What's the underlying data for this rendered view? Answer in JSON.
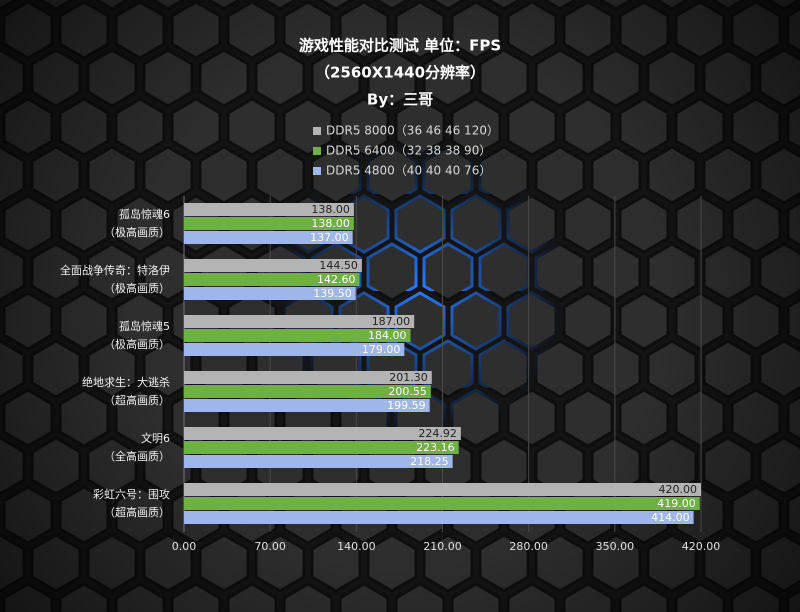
{
  "chart_data": {
    "type": "hbar",
    "title": [
      "游戏性能对比测试 单位：FPS",
      "（2560X1440分辨率）",
      "By：三哥"
    ],
    "categories": [
      [
        "孤岛惊魂6",
        "（极高画质）"
      ],
      [
        "全面战争传奇：特洛伊",
        "（极高画质）"
      ],
      [
        "孤岛惊魂5",
        "（极高画质）"
      ],
      [
        "绝地求生：大逃杀",
        "（超高画质）"
      ],
      [
        "文明6",
        "（全高画质）"
      ],
      [
        "彩虹六号：围攻",
        "（超高画质）"
      ]
    ],
    "series": [
      {
        "name": "DDR5 8000（36 46 46 120）",
        "color": "#b4b4b4",
        "values": [
          138,
          144.5,
          187,
          201.3,
          224.92,
          420
        ],
        "value_labels": [
          "138.00",
          "144.50",
          "187.00",
          "201.30",
          "224.92",
          "420.00"
        ]
      },
      {
        "name": "DDR5 6400（32 38 38 90）",
        "color": "#6fb043",
        "values": [
          138,
          142.6,
          184,
          200.55,
          223.16,
          419
        ],
        "value_labels": [
          "138.00",
          "142.60",
          "184.00",
          "200.55",
          "223.16",
          "419.00"
        ]
      },
      {
        "name": "DDR5 4800（40 40 40 76）",
        "color": "#9fb6e8",
        "values": [
          137,
          139.5,
          179,
          199.59,
          218.25,
          414
        ],
        "value_labels": [
          "137.00",
          "139.50",
          "179.00",
          "199.59",
          "218.25",
          "414.00"
        ]
      }
    ],
    "xlim": [
      0,
      420
    ],
    "xticks": [
      {
        "value": 0,
        "label": "0.00"
      },
      {
        "value": 70,
        "label": "70.00"
      },
      {
        "value": 140,
        "label": "140.00"
      },
      {
        "value": 210,
        "label": "210.00"
      },
      {
        "value": 280,
        "label": "280.00"
      },
      {
        "value": 350,
        "label": "350.00"
      },
      {
        "value": 420,
        "label": "420.00"
      }
    ],
    "grid": true
  }
}
